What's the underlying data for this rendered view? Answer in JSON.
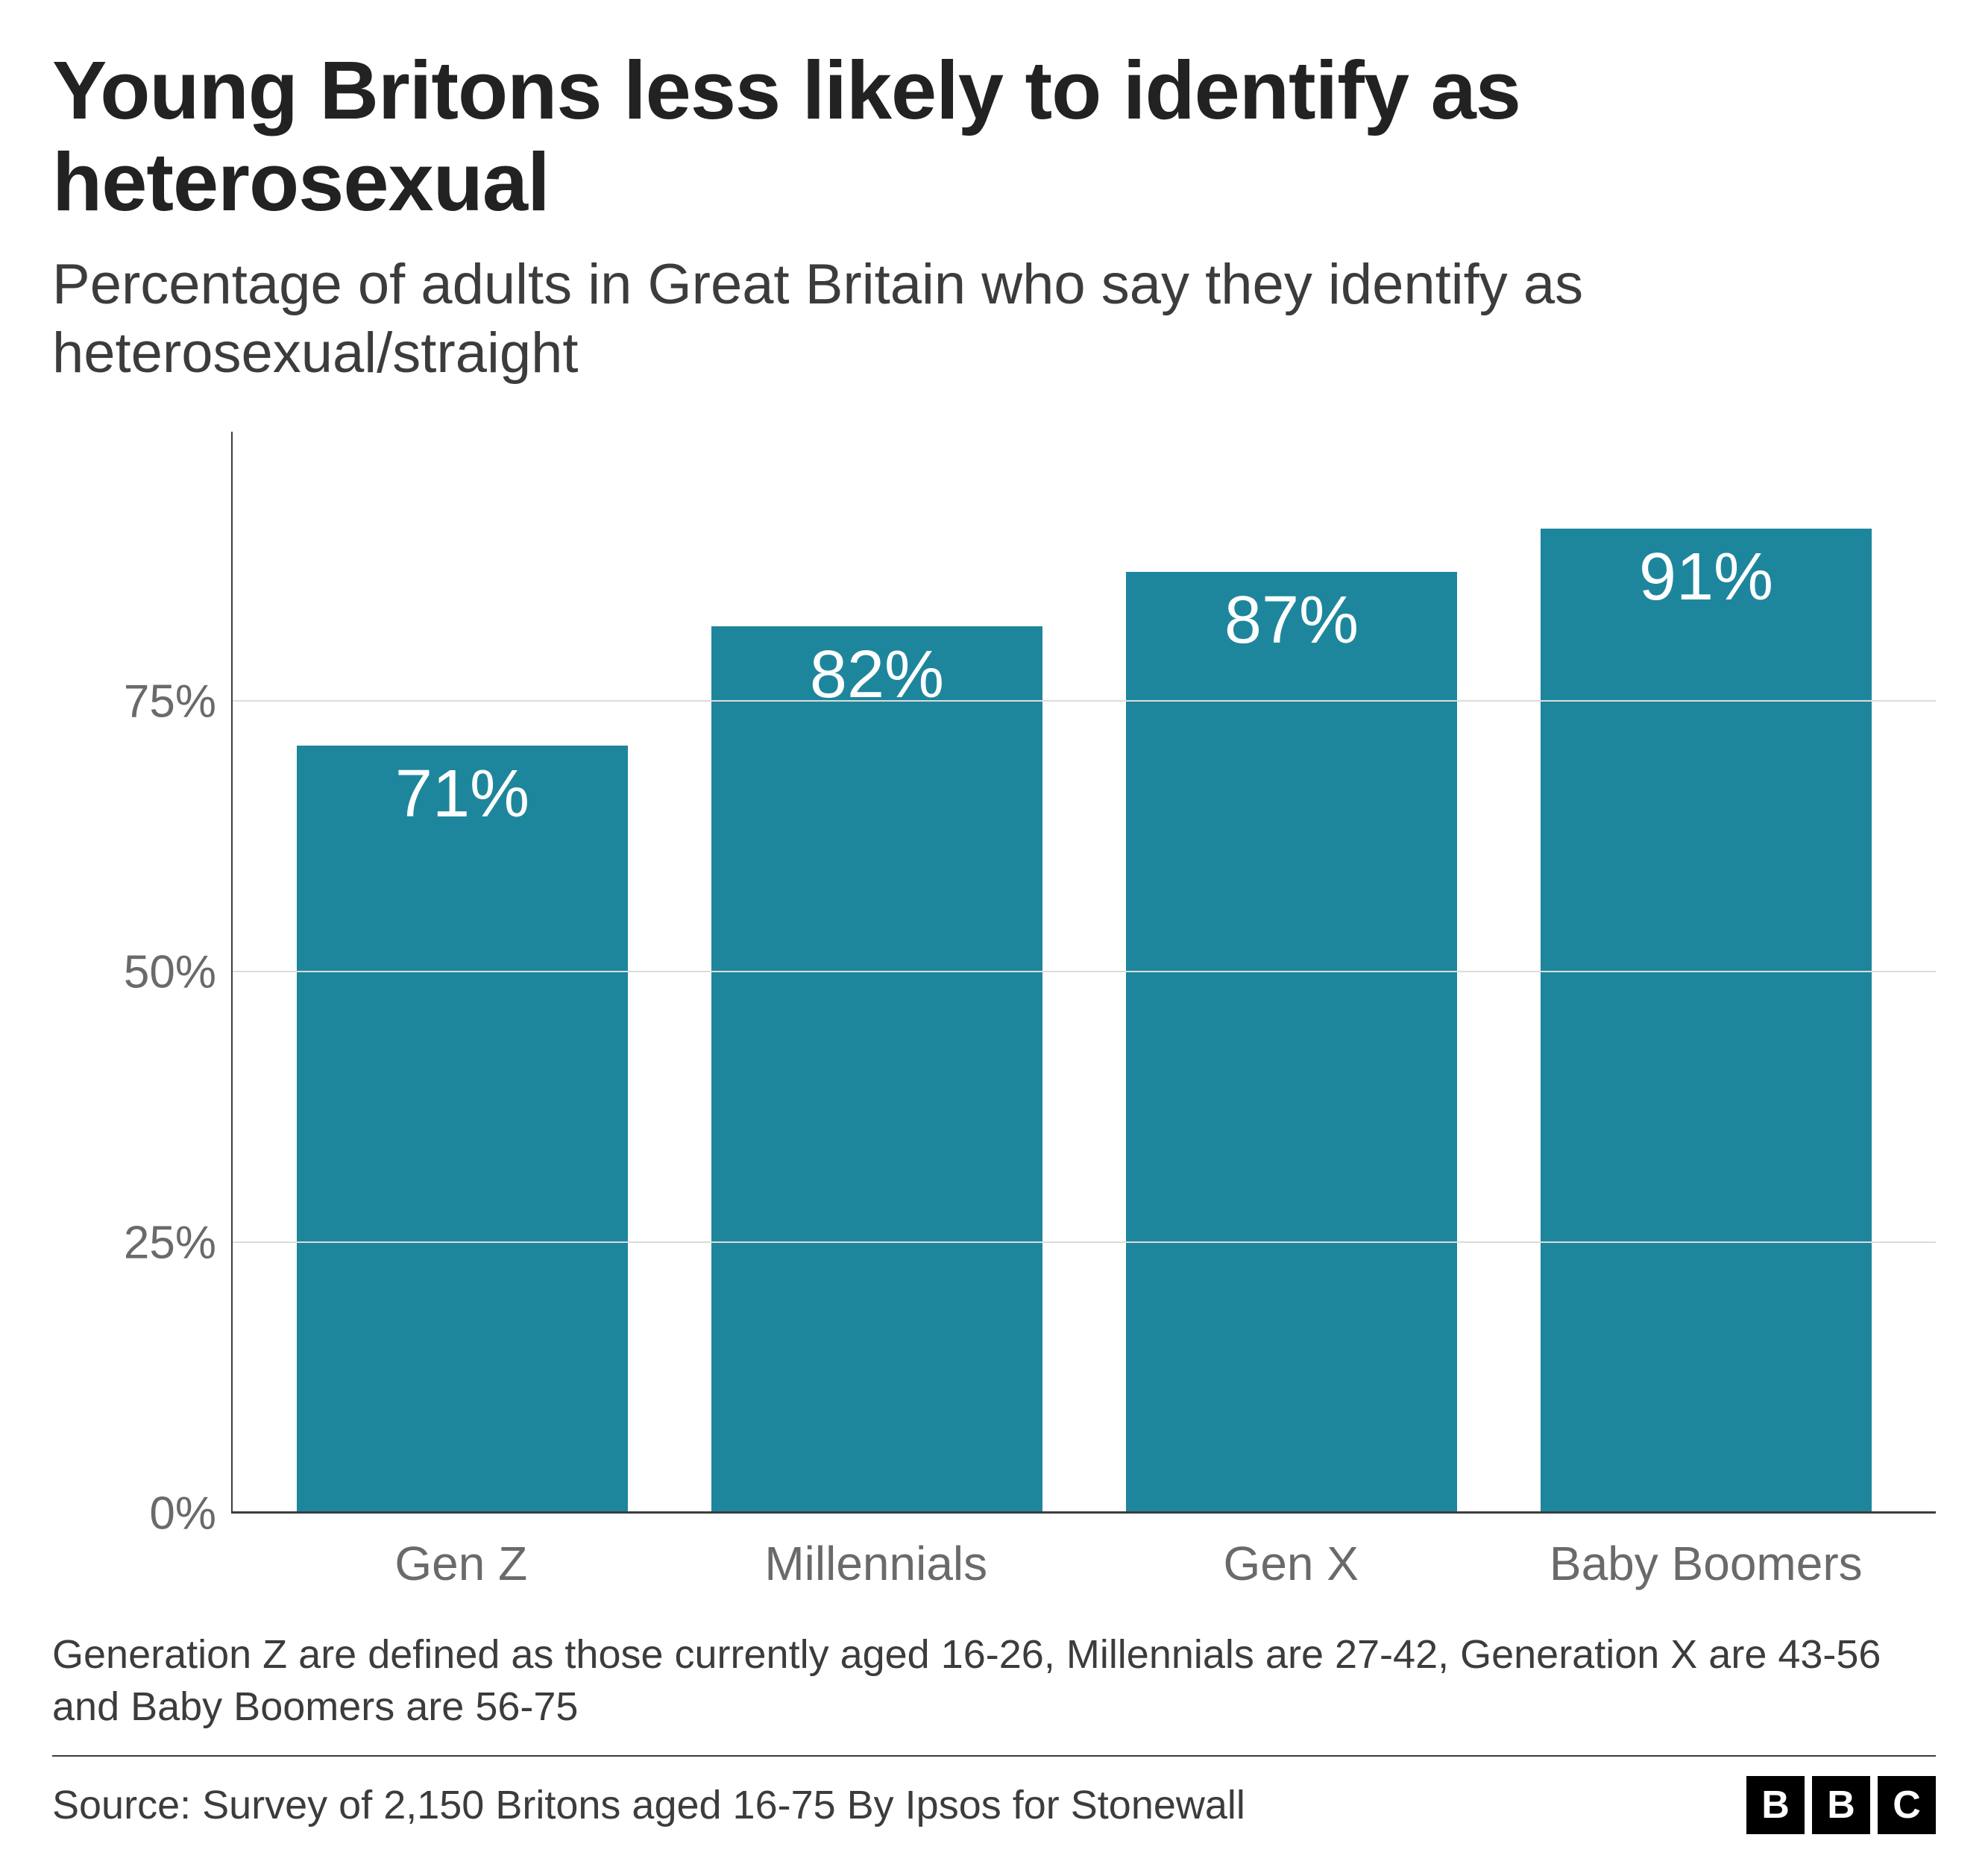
{
  "title": "Young Britons less likely to identify as heterosexual",
  "subtitle": "Percentage of adults in Great Britain who say they identify as heterosexual/straight",
  "chart": {
    "type": "bar",
    "categories": [
      "Gen Z",
      "Millennials",
      "Gen X",
      "Baby Boomers"
    ],
    "values": [
      71,
      82,
      87,
      91
    ],
    "value_labels": [
      "71%",
      "82%",
      "87%",
      "91%"
    ],
    "bar_color": "#1e869c",
    "bar_width_pct": 80,
    "value_label_color": "#ffffff",
    "value_label_fontsize": 90,
    "ymax": 100,
    "yticks": [
      0,
      25,
      50,
      75
    ],
    "ytick_labels": [
      "0%",
      "25%",
      "50%",
      "75%"
    ],
    "ytick_fontsize": 62,
    "ytick_color": "#6a6a6a",
    "xlabel_fontsize": 64,
    "xlabel_color": "#6a6a6a",
    "grid_color": "#dcdcdc",
    "axis_color": "#3c3c3c",
    "background_color": "#ffffff"
  },
  "note": "Generation Z are defined as those currently aged 16-26, Millennials are 27-42, Generation X are 43-56 and Baby Boomers are 56-75",
  "source": "Source: Survey of 2,150 Britons aged 16-75 By Ipsos for Stonewall",
  "logo_letters": [
    "B",
    "B",
    "C"
  ],
  "title_fontsize": 110,
  "subtitle_fontsize": 76,
  "note_fontsize": 54,
  "source_fontsize": 54
}
